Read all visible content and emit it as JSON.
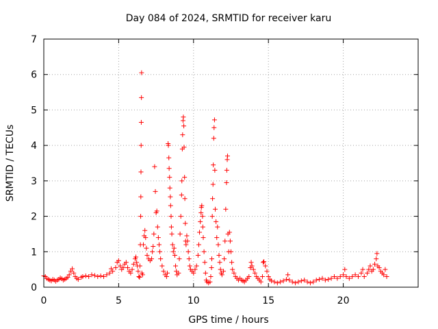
{
  "chart_data": {
    "type": "scatter",
    "title": "Day 084 of 2024, SRMTID for receiver karu",
    "xlabel": "GPS time / hours",
    "ylabel": "SRMTID / TECUs",
    "xlim": [
      0,
      25
    ],
    "ylim": [
      0,
      7
    ],
    "xticks": [
      0,
      5,
      10,
      15,
      20
    ],
    "yticks": [
      0,
      1,
      2,
      3,
      4,
      5,
      6,
      7
    ],
    "grid": true,
    "marker": "+",
    "color": "#ff0000",
    "series": [
      {
        "name": "SRMTID",
        "points": [
          [
            0.0,
            0.32
          ],
          [
            0.1,
            0.3
          ],
          [
            0.2,
            0.25
          ],
          [
            0.3,
            0.22
          ],
          [
            0.4,
            0.2
          ],
          [
            0.5,
            0.18
          ],
          [
            0.6,
            0.22
          ],
          [
            0.7,
            0.2
          ],
          [
            0.8,
            0.17
          ],
          [
            0.9,
            0.2
          ],
          [
            1.0,
            0.22
          ],
          [
            1.1,
            0.26
          ],
          [
            1.2,
            0.24
          ],
          [
            1.3,
            0.2
          ],
          [
            1.4,
            0.22
          ],
          [
            1.5,
            0.25
          ],
          [
            1.6,
            0.28
          ],
          [
            1.7,
            0.35
          ],
          [
            1.8,
            0.45
          ],
          [
            1.9,
            0.52
          ],
          [
            2.0,
            0.4
          ],
          [
            2.1,
            0.3
          ],
          [
            2.2,
            0.25
          ],
          [
            2.3,
            0.22
          ],
          [
            2.5,
            0.28
          ],
          [
            2.6,
            0.3
          ],
          [
            2.8,
            0.32
          ],
          [
            3.0,
            0.3
          ],
          [
            3.2,
            0.35
          ],
          [
            3.4,
            0.33
          ],
          [
            3.6,
            0.3
          ],
          [
            3.8,
            0.32
          ],
          [
            4.0,
            0.3
          ],
          [
            4.2,
            0.35
          ],
          [
            4.4,
            0.4
          ],
          [
            4.5,
            0.52
          ],
          [
            4.6,
            0.45
          ],
          [
            4.8,
            0.55
          ],
          [
            4.9,
            0.7
          ],
          [
            5.0,
            0.75
          ],
          [
            5.1,
            0.6
          ],
          [
            5.2,
            0.5
          ],
          [
            5.3,
            0.55
          ],
          [
            5.4,
            0.65
          ],
          [
            5.5,
            0.7
          ],
          [
            5.6,
            0.55
          ],
          [
            5.7,
            0.45
          ],
          [
            5.8,
            0.4
          ],
          [
            5.9,
            0.5
          ],
          [
            6.0,
            0.65
          ],
          [
            6.1,
            0.8
          ],
          [
            6.15,
            0.85
          ],
          [
            6.2,
            0.7
          ],
          [
            6.25,
            0.6
          ],
          [
            6.3,
            0.45
          ],
          [
            6.35,
            0.3
          ],
          [
            6.4,
            0.28
          ],
          [
            6.42,
            0.6
          ],
          [
            6.45,
            1.2
          ],
          [
            6.47,
            2.0
          ],
          [
            6.48,
            2.55
          ],
          [
            6.49,
            3.25
          ],
          [
            6.5,
            4.0
          ],
          [
            6.51,
            4.65
          ],
          [
            6.52,
            5.35
          ],
          [
            6.53,
            6.05
          ],
          [
            6.55,
            0.4
          ],
          [
            6.6,
            0.35
          ],
          [
            6.65,
            1.2
          ],
          [
            6.7,
            1.45
          ],
          [
            6.75,
            1.6
          ],
          [
            6.8,
            1.4
          ],
          [
            6.85,
            1.1
          ],
          [
            6.9,
            0.9
          ],
          [
            7.0,
            0.8
          ],
          [
            7.1,
            0.75
          ],
          [
            7.2,
            0.8
          ],
          [
            7.25,
            1.0
          ],
          [
            7.3,
            1.15
          ],
          [
            7.35,
            1.5
          ],
          [
            7.4,
            3.4
          ],
          [
            7.45,
            2.7
          ],
          [
            7.5,
            2.1
          ],
          [
            7.55,
            2.15
          ],
          [
            7.6,
            1.7
          ],
          [
            7.65,
            1.4
          ],
          [
            7.7,
            1.2
          ],
          [
            7.75,
            1.0
          ],
          [
            7.8,
            0.8
          ],
          [
            7.9,
            0.6
          ],
          [
            8.0,
            0.45
          ],
          [
            8.1,
            0.35
          ],
          [
            8.2,
            0.3
          ],
          [
            8.25,
            0.4
          ],
          [
            8.3,
            4.05
          ],
          [
            8.32,
            4.0
          ],
          [
            8.35,
            3.65
          ],
          [
            8.37,
            3.35
          ],
          [
            8.4,
            3.1
          ],
          [
            8.42,
            2.8
          ],
          [
            8.45,
            2.55
          ],
          [
            8.47,
            2.3
          ],
          [
            8.5,
            2.0
          ],
          [
            8.52,
            1.7
          ],
          [
            8.55,
            1.5
          ],
          [
            8.6,
            1.2
          ],
          [
            8.65,
            1.0
          ],
          [
            8.7,
            1.1
          ],
          [
            8.75,
            0.9
          ],
          [
            8.8,
            0.6
          ],
          [
            8.85,
            0.45
          ],
          [
            8.9,
            0.35
          ],
          [
            9.0,
            0.4
          ],
          [
            9.05,
            0.8
          ],
          [
            9.1,
            1.5
          ],
          [
            9.15,
            2.0
          ],
          [
            9.2,
            2.6
          ],
          [
            9.22,
            3.0
          ],
          [
            9.25,
            3.9
          ],
          [
            9.27,
            4.3
          ],
          [
            9.3,
            4.7
          ],
          [
            9.32,
            4.8
          ],
          [
            9.35,
            4.55
          ],
          [
            9.37,
            3.95
          ],
          [
            9.4,
            3.1
          ],
          [
            9.42,
            2.5
          ],
          [
            9.45,
            1.8
          ],
          [
            9.47,
            1.3
          ],
          [
            9.5,
            1.2
          ],
          [
            9.55,
            1.45
          ],
          [
            9.6,
            1.3
          ],
          [
            9.65,
            1.0
          ],
          [
            9.7,
            0.8
          ],
          [
            9.75,
            0.6
          ],
          [
            9.8,
            0.5
          ],
          [
            9.9,
            0.45
          ],
          [
            10.0,
            0.4
          ],
          [
            10.1,
            0.5
          ],
          [
            10.2,
            0.6
          ],
          [
            10.3,
            0.9
          ],
          [
            10.35,
            1.2
          ],
          [
            10.4,
            1.55
          ],
          [
            10.45,
            1.85
          ],
          [
            10.5,
            2.1
          ],
          [
            10.52,
            2.25
          ],
          [
            10.55,
            2.3
          ],
          [
            10.6,
            2.0
          ],
          [
            10.62,
            1.7
          ],
          [
            10.65,
            1.4
          ],
          [
            10.7,
            1.0
          ],
          [
            10.75,
            0.7
          ],
          [
            10.8,
            0.4
          ],
          [
            10.85,
            0.2
          ],
          [
            10.9,
            0.15
          ],
          [
            11.0,
            0.12
          ],
          [
            11.1,
            0.15
          ],
          [
            11.15,
            0.3
          ],
          [
            11.2,
            0.55
          ],
          [
            11.22,
            0.8
          ],
          [
            11.25,
            2.0
          ],
          [
            11.27,
            2.5
          ],
          [
            11.3,
            2.9
          ],
          [
            11.32,
            3.45
          ],
          [
            11.35,
            4.2
          ],
          [
            11.37,
            4.5
          ],
          [
            11.4,
            4.72
          ],
          [
            11.42,
            3.3
          ],
          [
            11.45,
            2.2
          ],
          [
            11.5,
            1.85
          ],
          [
            11.55,
            1.4
          ],
          [
            11.6,
            1.7
          ],
          [
            11.65,
            1.2
          ],
          [
            11.7,
            0.9
          ],
          [
            11.75,
            0.7
          ],
          [
            11.8,
            0.5
          ],
          [
            11.85,
            0.4
          ],
          [
            11.9,
            0.35
          ],
          [
            12.0,
            0.45
          ],
          [
            12.05,
            0.8
          ],
          [
            12.1,
            1.3
          ],
          [
            12.15,
            2.2
          ],
          [
            12.2,
            2.95
          ],
          [
            12.22,
            3.3
          ],
          [
            12.25,
            3.6
          ],
          [
            12.27,
            3.7
          ],
          [
            12.3,
            1.5
          ],
          [
            12.35,
            1.0
          ],
          [
            12.4,
            1.55
          ],
          [
            12.45,
            1.3
          ],
          [
            12.5,
            1.0
          ],
          [
            12.55,
            0.7
          ],
          [
            12.6,
            0.5
          ],
          [
            12.7,
            0.4
          ],
          [
            12.8,
            0.3
          ],
          [
            12.9,
            0.25
          ],
          [
            13.0,
            0.2
          ],
          [
            13.1,
            0.25
          ],
          [
            13.2,
            0.2
          ],
          [
            13.3,
            0.18
          ],
          [
            13.4,
            0.15
          ],
          [
            13.5,
            0.2
          ],
          [
            13.6,
            0.25
          ],
          [
            13.7,
            0.3
          ],
          [
            13.8,
            0.55
          ],
          [
            13.85,
            0.7
          ],
          [
            13.9,
            0.6
          ],
          [
            14.0,
            0.5
          ],
          [
            14.1,
            0.4
          ],
          [
            14.2,
            0.3
          ],
          [
            14.3,
            0.25
          ],
          [
            14.4,
            0.2
          ],
          [
            14.5,
            0.15
          ],
          [
            14.6,
            0.3
          ],
          [
            14.65,
            0.7
          ],
          [
            14.7,
            0.72
          ],
          [
            14.8,
            0.6
          ],
          [
            14.9,
            0.45
          ],
          [
            15.0,
            0.3
          ],
          [
            15.1,
            0.22
          ],
          [
            15.2,
            0.18
          ],
          [
            15.4,
            0.15
          ],
          [
            15.6,
            0.12
          ],
          [
            15.8,
            0.15
          ],
          [
            16.0,
            0.18
          ],
          [
            16.2,
            0.22
          ],
          [
            16.3,
            0.35
          ],
          [
            16.4,
            0.2
          ],
          [
            16.6,
            0.15
          ],
          [
            16.8,
            0.12
          ],
          [
            17.0,
            0.15
          ],
          [
            17.2,
            0.18
          ],
          [
            17.4,
            0.2
          ],
          [
            17.6,
            0.15
          ],
          [
            17.8,
            0.12
          ],
          [
            18.0,
            0.15
          ],
          [
            18.2,
            0.2
          ],
          [
            18.4,
            0.22
          ],
          [
            18.6,
            0.25
          ],
          [
            18.8,
            0.2
          ],
          [
            19.0,
            0.22
          ],
          [
            19.2,
            0.25
          ],
          [
            19.4,
            0.3
          ],
          [
            19.6,
            0.25
          ],
          [
            19.8,
            0.3
          ],
          [
            20.0,
            0.35
          ],
          [
            20.1,
            0.5
          ],
          [
            20.2,
            0.3
          ],
          [
            20.4,
            0.25
          ],
          [
            20.6,
            0.3
          ],
          [
            20.8,
            0.35
          ],
          [
            21.0,
            0.3
          ],
          [
            21.2,
            0.4
          ],
          [
            21.3,
            0.5
          ],
          [
            21.4,
            0.3
          ],
          [
            21.6,
            0.4
          ],
          [
            21.7,
            0.5
          ],
          [
            21.8,
            0.6
          ],
          [
            21.9,
            0.45
          ],
          [
            22.0,
            0.5
          ],
          [
            22.1,
            0.65
          ],
          [
            22.2,
            0.8
          ],
          [
            22.25,
            0.95
          ],
          [
            22.3,
            0.6
          ],
          [
            22.4,
            0.55
          ],
          [
            22.5,
            0.45
          ],
          [
            22.6,
            0.4
          ],
          [
            22.7,
            0.35
          ],
          [
            22.8,
            0.5
          ],
          [
            22.9,
            0.3
          ]
        ]
      }
    ]
  }
}
